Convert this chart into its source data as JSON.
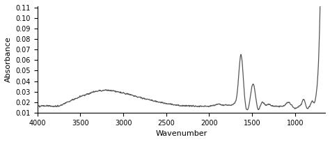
{
  "title": "",
  "xlabel": "Wavenumber",
  "ylabel": "Absorbance",
  "xlim": [
    4000,
    650
  ],
  "ylim": [
    0.01,
    0.111
  ],
  "yticks": [
    0.01,
    0.02,
    0.03,
    0.04,
    0.05,
    0.06,
    0.07,
    0.08,
    0.09,
    0.1,
    0.11
  ],
  "xticks": [
    4000,
    3500,
    3000,
    2500,
    2000,
    1500,
    1000
  ],
  "line_color": "#555555",
  "line_width": 0.9,
  "background_color": "#ffffff"
}
